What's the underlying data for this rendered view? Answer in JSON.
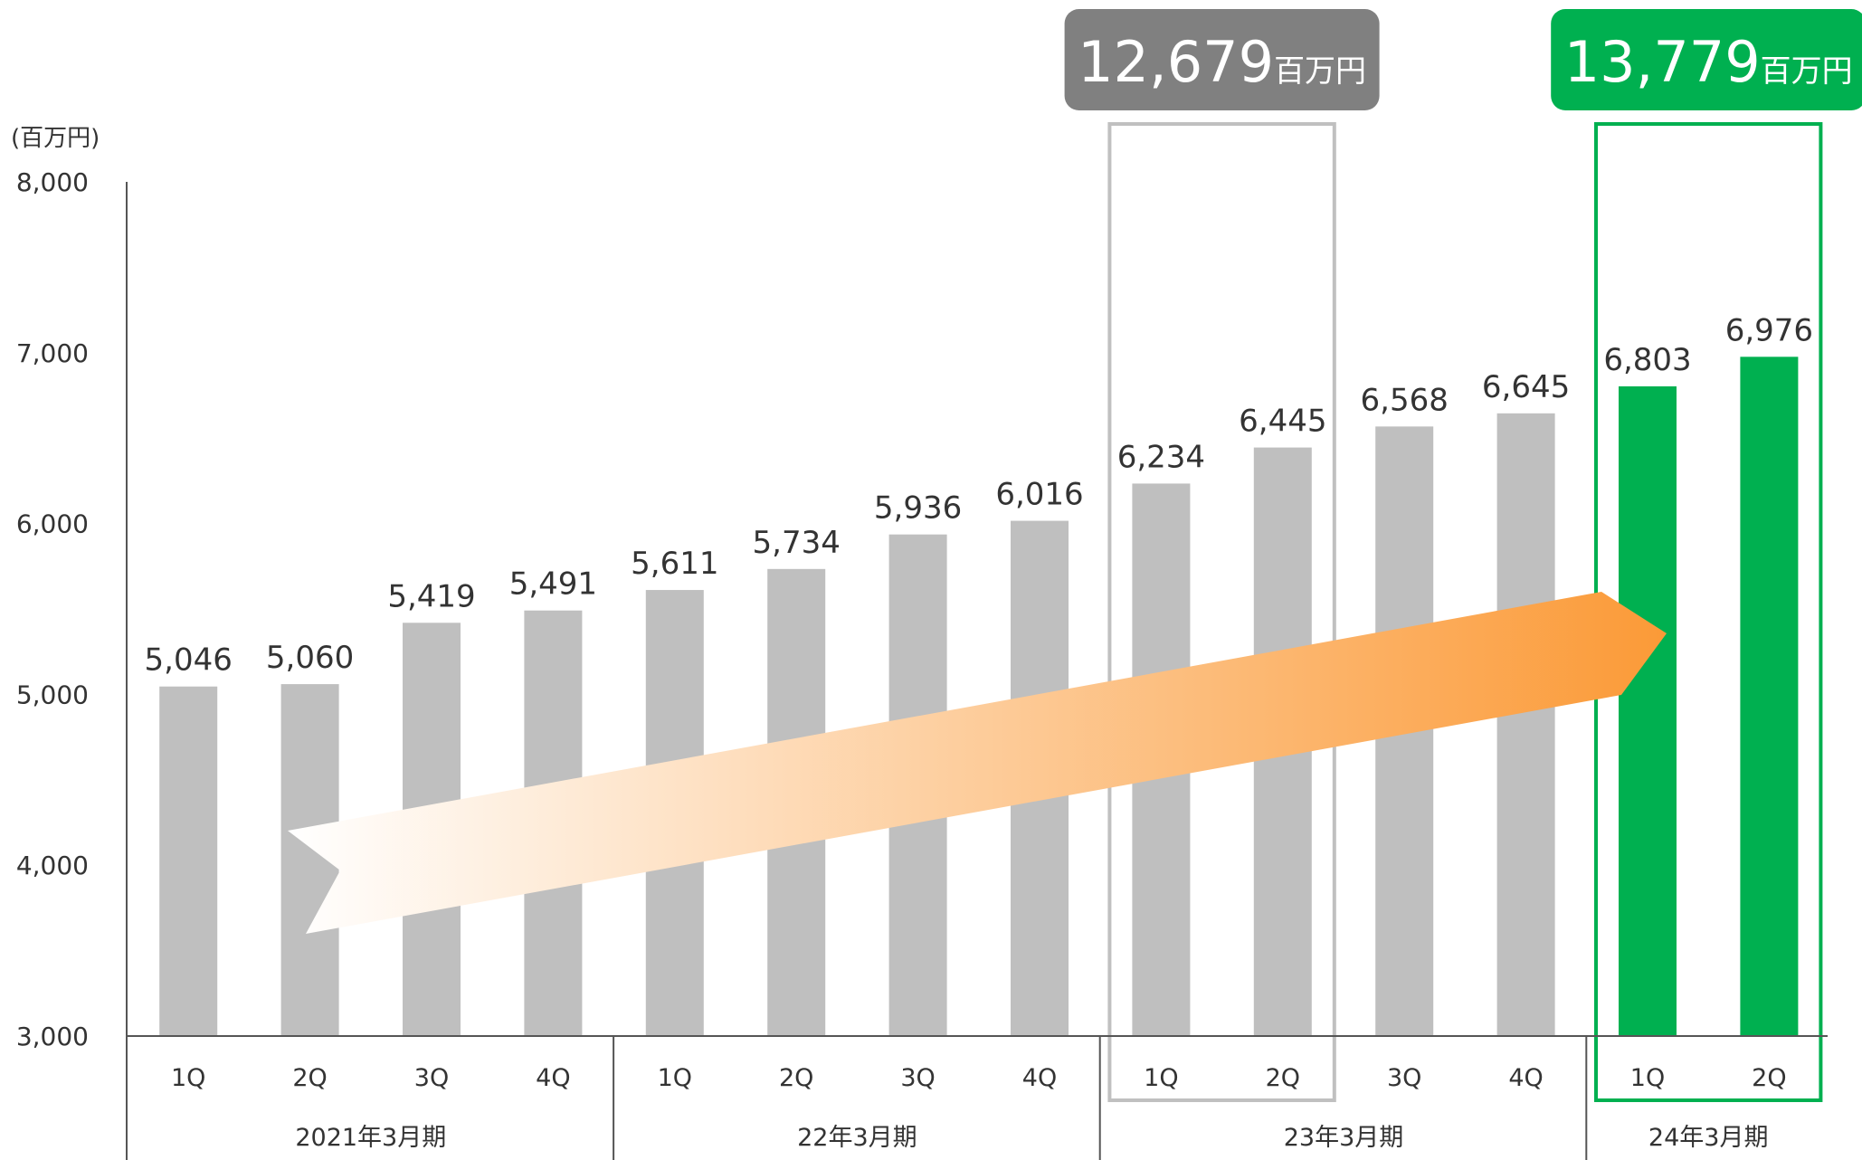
{
  "chart_data": {
    "type": "bar",
    "unit_label": "(百万円)",
    "y_ticks": [
      "3,000",
      "4,000",
      "5,000",
      "6,000",
      "7,000",
      "8,000"
    ],
    "ylim": [
      3000,
      8000
    ],
    "grid": false,
    "bars": [
      {
        "quarter": "1Q",
        "value": 5046,
        "label": "5,046",
        "highlight": false
      },
      {
        "quarter": "2Q",
        "value": 5060,
        "label": "5,060",
        "highlight": false
      },
      {
        "quarter": "3Q",
        "value": 5419,
        "label": "5,419",
        "highlight": false
      },
      {
        "quarter": "4Q",
        "value": 5491,
        "label": "5,491",
        "highlight": false
      },
      {
        "quarter": "1Q",
        "value": 5611,
        "label": "5,611",
        "highlight": false
      },
      {
        "quarter": "2Q",
        "value": 5734,
        "label": "5,734",
        "highlight": false
      },
      {
        "quarter": "3Q",
        "value": 5936,
        "label": "5,936",
        "highlight": false
      },
      {
        "quarter": "4Q",
        "value": 6016,
        "label": "6,016",
        "highlight": false
      },
      {
        "quarter": "1Q",
        "value": 6234,
        "label": "6,234",
        "highlight": false
      },
      {
        "quarter": "2Q",
        "value": 6445,
        "label": "6,445",
        "highlight": false
      },
      {
        "quarter": "3Q",
        "value": 6568,
        "label": "6,568",
        "highlight": false
      },
      {
        "quarter": "4Q",
        "value": 6645,
        "label": "6,645",
        "highlight": false
      },
      {
        "quarter": "1Q",
        "value": 6803,
        "label": "6,803",
        "highlight": true
      },
      {
        "quarter": "2Q",
        "value": 6976,
        "label": "6,976",
        "highlight": true
      }
    ],
    "fiscal_years": [
      {
        "label": "2021年3月期",
        "bars": [
          0,
          3
        ]
      },
      {
        "label": "22年3月期",
        "bars": [
          4,
          7
        ]
      },
      {
        "label": "23年3月期",
        "bars": [
          8,
          11
        ]
      },
      {
        "label": "24年3月期",
        "bars": [
          12,
          13
        ]
      }
    ],
    "totals": [
      {
        "number": "12,679",
        "unit": "百万円",
        "bars": [
          8,
          9
        ],
        "color": "#808080",
        "frame_color": "#c0c0c0"
      },
      {
        "number": "13,779",
        "unit": "百万円",
        "bars": [
          12,
          13
        ],
        "color": "#00b050",
        "frame_color": "#00b050"
      }
    ],
    "colors": {
      "bar": "#bfbfbf",
      "highlight": "#00b050",
      "arrow_start": "#ffffff",
      "arrow_end": "#fb9a37",
      "axis": "#555555"
    }
  }
}
